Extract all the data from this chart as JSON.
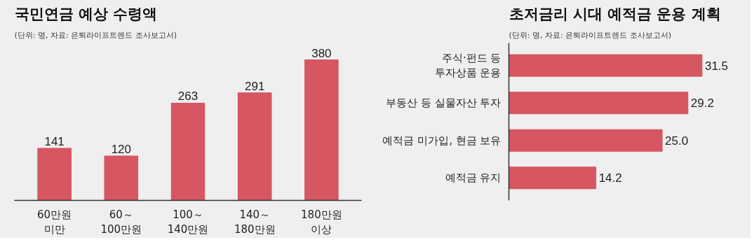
{
  "chart_data": [
    {
      "type": "bar",
      "title": "국민연금 예상 수령액",
      "subtitle": "(단위: 명, 자료: 은퇴라이프트렌드 조사보고서)",
      "categories": [
        "60만원\n미만",
        "60～\n100만원",
        "100～\n140만원",
        "140～\n180만원",
        "180만원\n이상"
      ],
      "values": [
        141,
        120,
        263,
        291,
        380
      ],
      "color": "#d65661",
      "data_labels": true
    },
    {
      "type": "bar",
      "orientation": "horizontal",
      "title": "초저금리 시대 예적금 운용 계획",
      "subtitle": "(단위: 명, 자료: 은퇴라이프트렌드 조사보고서)",
      "categories": [
        "주식·펀드 등\n투자상품 운용",
        "부동산 등 실물자산 투자",
        "예적금 미가입, 현금 보유",
        "예적금 유지"
      ],
      "values": [
        31.5,
        29.2,
        25.0,
        14.2
      ],
      "value_labels": [
        "31.5",
        "29.2",
        "25.0",
        "14.2"
      ],
      "color": "#d65661"
    }
  ]
}
